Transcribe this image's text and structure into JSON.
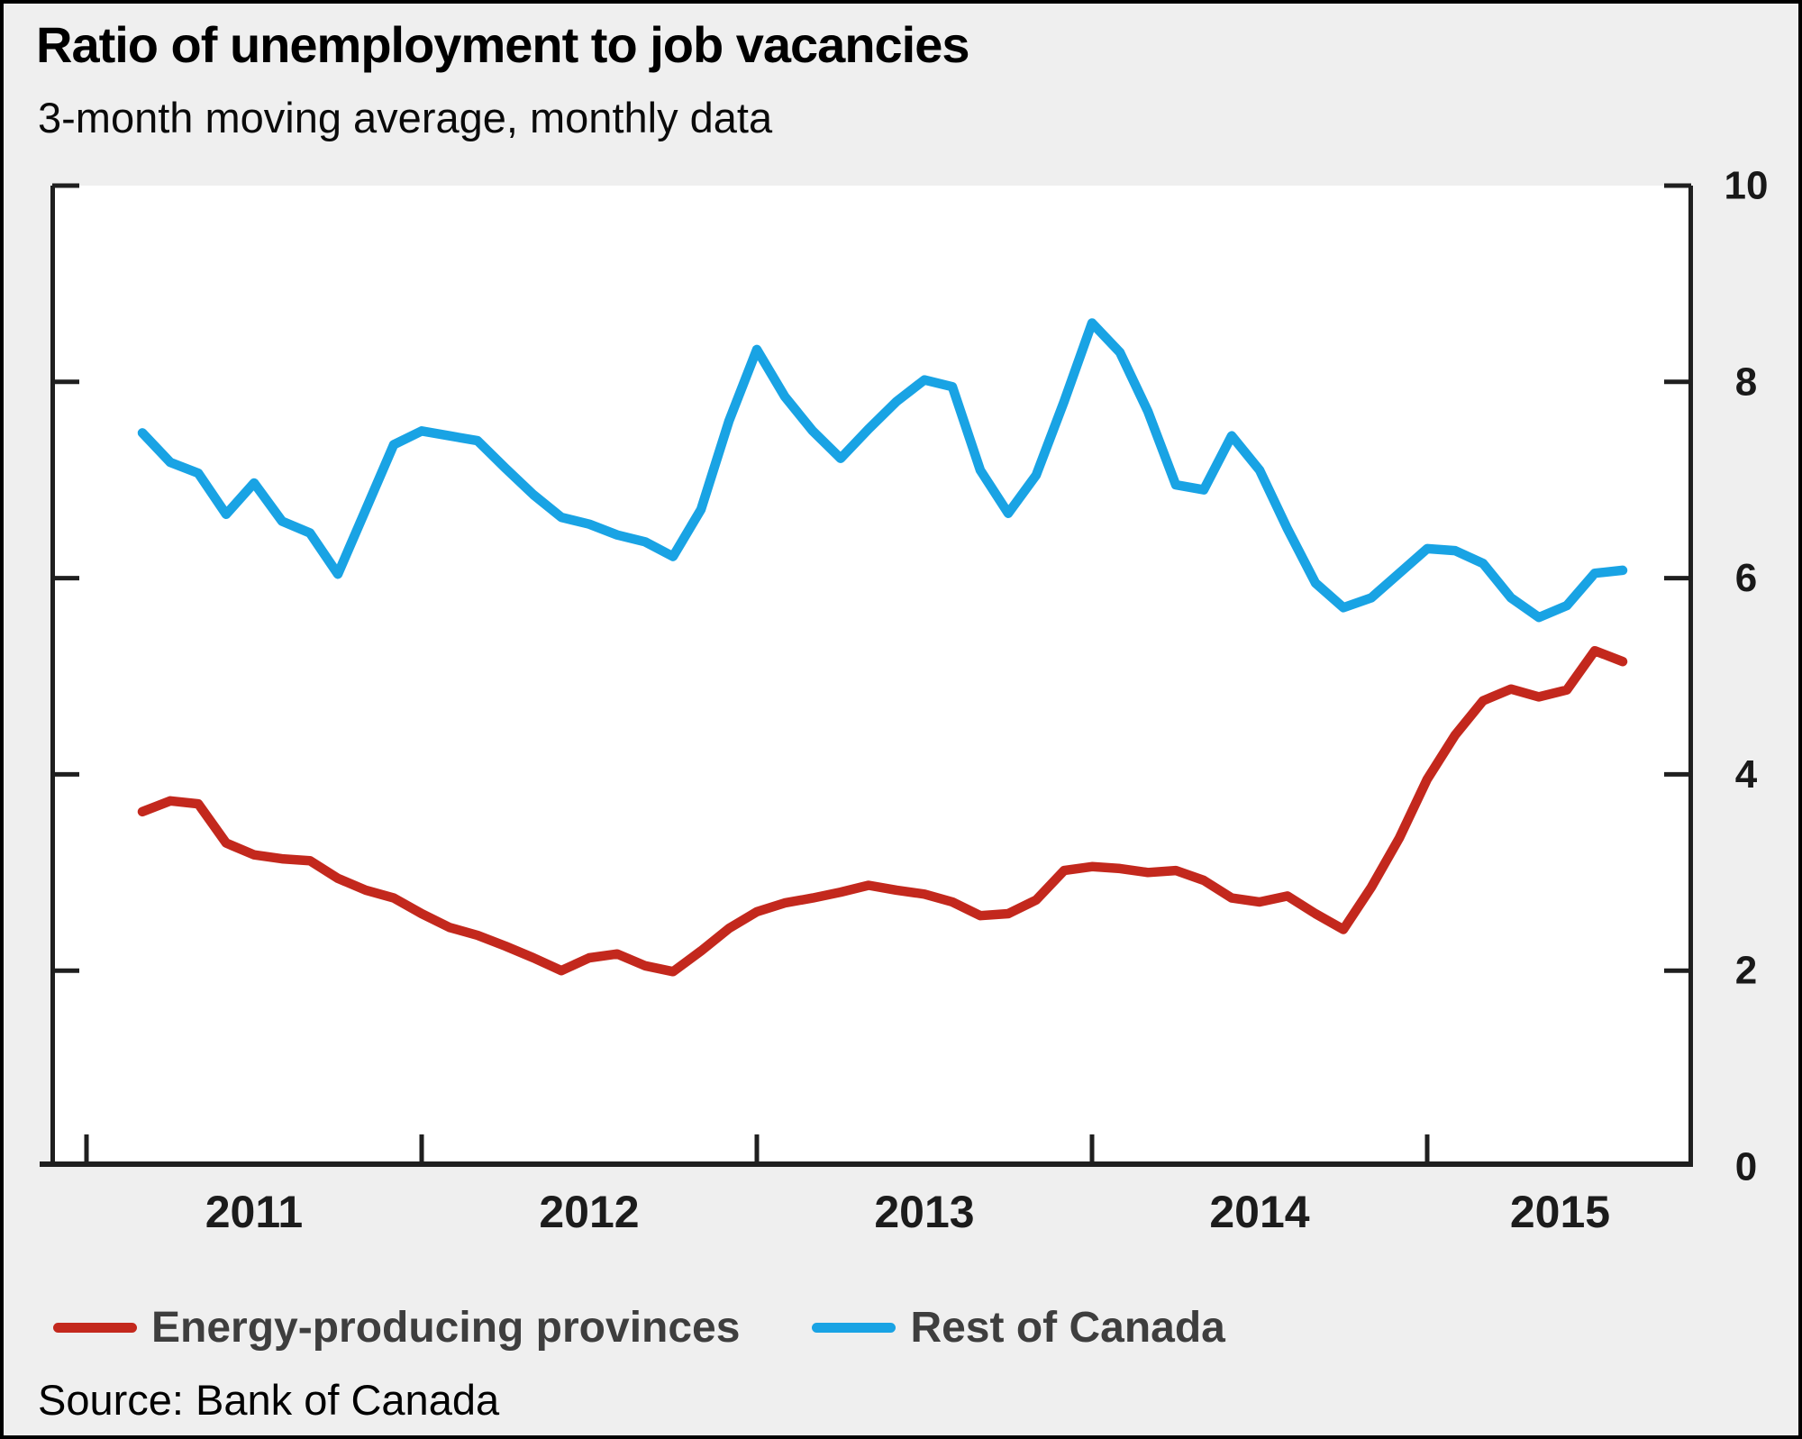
{
  "header": {
    "title": "Ratio of unemployment to job vacancies",
    "subtitle": "3-month moving average, monthly data"
  },
  "footer": {
    "source": "Source: Bank of Canada"
  },
  "chart_data": {
    "type": "line",
    "title": "Ratio of unemployment to job vacancies",
    "subtitle": "3-month moving average, monthly data",
    "source": "Source: Bank of Canada",
    "ylim": [
      0,
      10
    ],
    "y_ticks": [
      0,
      2,
      4,
      6,
      8,
      10
    ],
    "y_axis_side": "right",
    "grid": false,
    "legend_position": "bottom",
    "x_tick_labels": [
      "2011",
      "2012",
      "2013",
      "2014",
      "2015"
    ],
    "x_start": "2011-03",
    "x_end": "2015-08",
    "x": [
      "2011-03",
      "2011-04",
      "2011-05",
      "2011-06",
      "2011-07",
      "2011-08",
      "2011-09",
      "2011-10",
      "2011-11",
      "2011-12",
      "2012-01",
      "2012-02",
      "2012-03",
      "2012-04",
      "2012-05",
      "2012-06",
      "2012-07",
      "2012-08",
      "2012-09",
      "2012-10",
      "2012-11",
      "2012-12",
      "2013-01",
      "2013-02",
      "2013-03",
      "2013-04",
      "2013-05",
      "2013-06",
      "2013-07",
      "2013-08",
      "2013-09",
      "2013-10",
      "2013-11",
      "2013-12",
      "2014-01",
      "2014-02",
      "2014-03",
      "2014-04",
      "2014-05",
      "2014-06",
      "2014-07",
      "2014-08",
      "2014-09",
      "2014-10",
      "2014-11",
      "2014-12",
      "2015-01",
      "2015-02",
      "2015-03",
      "2015-04",
      "2015-05",
      "2015-06",
      "2015-07",
      "2015-08"
    ],
    "start_month_offset": 2,
    "series": [
      {
        "name": "Energy-producing provinces",
        "color": "#c3281d",
        "values": [
          3.62,
          3.73,
          3.7,
          3.3,
          3.18,
          3.14,
          3.12,
          2.94,
          2.82,
          2.74,
          2.58,
          2.44,
          2.36,
          2.25,
          2.13,
          2.0,
          2.13,
          2.17,
          2.05,
          1.99,
          2.2,
          2.43,
          2.6,
          2.69,
          2.74,
          2.8,
          2.87,
          2.82,
          2.78,
          2.7,
          2.56,
          2.58,
          2.72,
          3.02,
          3.06,
          3.04,
          3.0,
          3.02,
          2.92,
          2.74,
          2.7,
          2.76,
          2.58,
          2.42,
          2.85,
          3.35,
          3.95,
          4.4,
          4.75,
          4.87,
          4.79,
          4.86,
          5.26,
          5.15
        ]
      },
      {
        "name": "Rest of Canada",
        "color": "#19a3e4",
        "values": [
          7.48,
          7.18,
          7.07,
          6.65,
          6.97,
          6.58,
          6.46,
          6.04,
          6.7,
          7.36,
          7.5,
          7.45,
          7.4,
          7.12,
          6.85,
          6.62,
          6.55,
          6.44,
          6.37,
          6.22,
          6.7,
          7.6,
          8.33,
          7.85,
          7.5,
          7.22,
          7.52,
          7.8,
          8.02,
          7.95,
          7.1,
          6.66,
          7.05,
          7.8,
          8.6,
          8.3,
          7.7,
          6.95,
          6.9,
          7.45,
          7.1,
          6.5,
          5.95,
          5.7,
          5.8,
          6.05,
          6.3,
          6.28,
          6.15,
          5.8,
          5.6,
          5.72,
          6.05,
          6.08
        ]
      }
    ]
  }
}
